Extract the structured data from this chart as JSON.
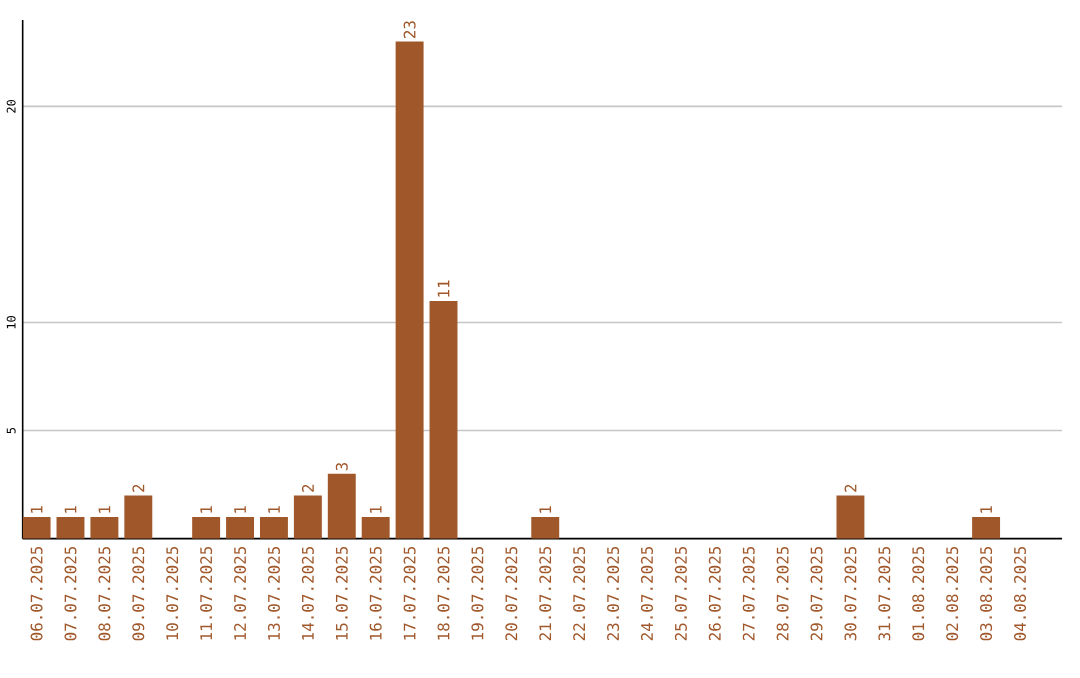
{
  "chart_data": {
    "type": "bar",
    "categories": [
      "06.07.2025",
      "07.07.2025",
      "08.07.2025",
      "09.07.2025",
      "10.07.2025",
      "11.07.2025",
      "12.07.2025",
      "13.07.2025",
      "14.07.2025",
      "15.07.2025",
      "16.07.2025",
      "17.07.2025",
      "18.07.2025",
      "19.07.2025",
      "20.07.2025",
      "21.07.2025",
      "22.07.2025",
      "23.07.2025",
      "24.07.2025",
      "25.07.2025",
      "26.07.2025",
      "27.07.2025",
      "28.07.2025",
      "29.07.2025",
      "30.07.2025",
      "31.07.2025",
      "01.08.2025",
      "02.08.2025",
      "03.08.2025",
      "04.08.2025"
    ],
    "values": [
      1,
      1,
      1,
      2,
      0,
      1,
      1,
      1,
      2,
      3,
      1,
      23,
      11,
      0,
      0,
      1,
      0,
      0,
      0,
      0,
      0,
      0,
      0,
      0,
      2,
      0,
      0,
      0,
      1,
      0
    ],
    "value_labels": [
      "1",
      "1",
      "1",
      "2",
      null,
      "1",
      "1",
      "1",
      "2",
      "3",
      "1",
      "23",
      "11",
      null,
      null,
      "1",
      null,
      null,
      null,
      null,
      null,
      null,
      null,
      null,
      "2",
      null,
      null,
      null,
      "1",
      null
    ],
    "color": "#a0572a",
    "ylim": [
      0,
      24
    ],
    "yticks": [
      5,
      10,
      20
    ],
    "grid": "y"
  }
}
